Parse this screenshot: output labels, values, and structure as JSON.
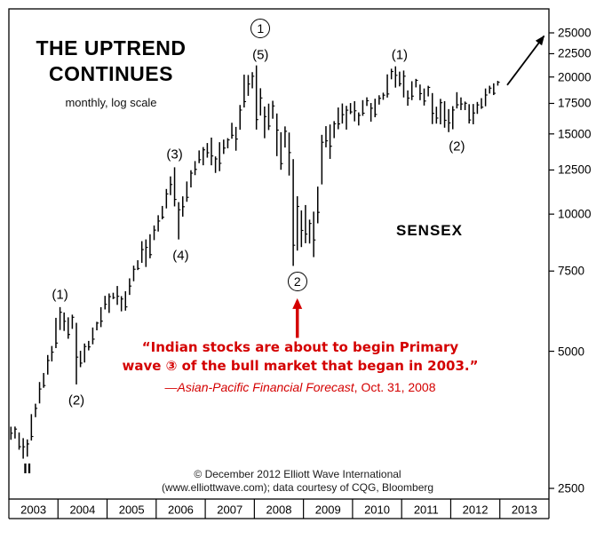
{
  "header": {
    "title_line1": "THE UPTREND",
    "title_line2": "CONTINUES",
    "subtitle": "monthly, log scale"
  },
  "labels": {
    "index_name": "SENSEX"
  },
  "quote": {
    "line1": "“Indian stocks are about to begin Primary",
    "line2": "wave ③ of the bull market that began in 2003.”",
    "attribution_italic": "—Asian-Pacific Financial Forecast",
    "attribution_rest": ", Oct. 31, 2008"
  },
  "footer": {
    "line1": "© December 2012 Elliott Wave International",
    "line2": "(www.elliottwave.com); data courtesy of CQG, Bloomberg"
  },
  "colors": {
    "background": "#ffffff",
    "bar_color": "#000000",
    "accent_red": "#d40000"
  },
  "chart_data": {
    "type": "bar",
    "subtype": "monthly high-low price bars",
    "title": "THE UPTREND CONTINUES",
    "scale": "log",
    "index": "SENSEX",
    "start_month": "2003-01",
    "x_years": [
      2003,
      2004,
      2005,
      2006,
      2007,
      2008,
      2009,
      2010,
      2011,
      2012,
      2013
    ],
    "y_ticks": [
      25000,
      22500,
      20000,
      17500,
      15000,
      12500,
      10000,
      7500,
      5000,
      2500
    ],
    "ylim": [
      2400,
      26500
    ],
    "series": [
      {
        "name": "SENSEX monthly [high, low]",
        "monthly_high_low": [
          [
            3415,
            3196
          ],
          [
            3417,
            3217
          ],
          [
            3316,
            3040
          ],
          [
            3223,
            2905
          ],
          [
            3202,
            2935
          ],
          [
            3639,
            3184
          ],
          [
            3836,
            3583
          ],
          [
            4280,
            3841
          ],
          [
            4480,
            4157
          ],
          [
            4906,
            4444
          ],
          [
            5135,
            4749
          ],
          [
            5920,
            5080
          ],
          [
            6250,
            5567
          ],
          [
            6083,
            5541
          ],
          [
            5935,
            5326
          ],
          [
            6016,
            5599
          ],
          [
            5773,
            4228
          ],
          [
            5013,
            4614
          ],
          [
            5200,
            4723
          ],
          [
            5269,
            5022
          ],
          [
            5638,
            5178
          ],
          [
            5803,
            5558
          ],
          [
            6248,
            5649
          ],
          [
            6617,
            6176
          ],
          [
            6696,
            6069
          ],
          [
            6721,
            6508
          ],
          [
            6954,
            6321
          ],
          [
            6606,
            6118
          ],
          [
            6772,
            6140
          ],
          [
            7228,
            6647
          ],
          [
            7708,
            7123
          ],
          [
            7921,
            7537
          ],
          [
            8722,
            7818
          ],
          [
            8800,
            7656
          ],
          [
            9034,
            8000
          ],
          [
            9443,
            8769
          ],
          [
            9945,
            9158
          ],
          [
            10422,
            9743
          ],
          [
            11356,
            10294
          ],
          [
            12102,
            11008
          ],
          [
            12671,
            10398
          ],
          [
            10626,
            8799
          ],
          [
            10940,
            9875
          ],
          [
            11794,
            10645
          ],
          [
            12485,
            11444
          ],
          [
            13075,
            12178
          ],
          [
            13799,
            12937
          ],
          [
            14035,
            12801
          ],
          [
            14325,
            13303
          ],
          [
            14724,
            12800
          ],
          [
            13386,
            12316
          ],
          [
            14384,
            12426
          ],
          [
            14576,
            13554
          ],
          [
            14683,
            13946
          ],
          [
            15869,
            14639
          ],
          [
            15542,
            13779
          ],
          [
            17361,
            15323
          ],
          [
            20238,
            17144
          ],
          [
            20204,
            18183
          ],
          [
            20498,
            18886
          ],
          [
            21207,
            15332
          ],
          [
            18895,
            16457
          ],
          [
            17227,
            14677
          ],
          [
            17480,
            15297
          ],
          [
            17736,
            16196
          ],
          [
            16632,
            13406
          ],
          [
            15130,
            12514
          ],
          [
            15580,
            14002
          ],
          [
            15107,
            12153
          ],
          [
            13204,
            7697
          ],
          [
            10945,
            8316
          ],
          [
            10189,
            8467
          ],
          [
            10470,
            8632
          ],
          [
            9725,
            8619
          ],
          [
            10127,
            8047
          ],
          [
            11492,
            9546
          ],
          [
            14931,
            11621
          ],
          [
            15601,
            14017
          ],
          [
            15732,
            13220
          ],
          [
            16002,
            14684
          ],
          [
            17143,
            15357
          ],
          [
            17493,
            15805
          ],
          [
            17290,
            15331
          ],
          [
            17531,
            16578
          ],
          [
            17701,
            15982
          ],
          [
            16722,
            15652
          ],
          [
            17793,
            16438
          ],
          [
            18048,
            17277
          ],
          [
            17537,
            15960
          ],
          [
            17920,
            16319
          ],
          [
            18238,
            17396
          ],
          [
            18475,
            17820
          ],
          [
            20268,
            18027
          ],
          [
            20855,
            19768
          ],
          [
            21109,
            18955
          ],
          [
            20552,
            19074
          ],
          [
            20665,
            18038
          ],
          [
            18691,
            17296
          ],
          [
            19575,
            17792
          ],
          [
            19811,
            18976
          ],
          [
            19254,
            17786
          ],
          [
            18873,
            17314
          ],
          [
            19132,
            18132
          ],
          [
            18440,
            15766
          ],
          [
            17212,
            15801
          ],
          [
            17908,
            15745
          ],
          [
            17702,
            15479
          ],
          [
            17004,
            15136
          ],
          [
            17259,
            15358
          ],
          [
            18524,
            17062
          ],
          [
            18041,
            16921
          ],
          [
            17664,
            16920
          ],
          [
            17432,
            15810
          ],
          [
            17448,
            15749
          ],
          [
            17631,
            16598
          ],
          [
            17973,
            17026
          ],
          [
            18870,
            17250
          ],
          [
            19137,
            18393
          ],
          [
            19373,
            18256
          ],
          [
            19613,
            19149
          ]
        ]
      }
    ],
    "annotations": [
      {
        "text": "(1)",
        "month": 12,
        "price": 6650,
        "circled": false
      },
      {
        "text": "(2)",
        "month": 16,
        "price": 3900,
        "circled": false
      },
      {
        "text": "(3)",
        "month": 40,
        "price": 13500,
        "circled": false
      },
      {
        "text": "(4)",
        "month": 41.5,
        "price": 8100,
        "circled": false
      },
      {
        "text": "(5)",
        "month": 61,
        "price": 22300,
        "circled": false
      },
      {
        "text": "1",
        "month": 61,
        "price": 25600,
        "circled": true
      },
      {
        "text": "2",
        "month": 70,
        "price": 7100,
        "circled": true
      },
      {
        "text": "(1)",
        "month": 95,
        "price": 22300,
        "circled": false
      },
      {
        "text": "(2)",
        "month": 109,
        "price": 14100,
        "circled": false
      },
      {
        "text": "II",
        "month": 4,
        "price": 2750,
        "circled": false,
        "bold": true
      }
    ],
    "crash_arrow": {
      "month": 70,
      "price_from": 5350,
      "price_to": 6450
    },
    "forecast_arrow": {
      "x1_year": 10.15,
      "price1": 19200,
      "x2_year": 10.9,
      "price2": 24600
    },
    "legend_position": "none",
    "grid": false
  }
}
